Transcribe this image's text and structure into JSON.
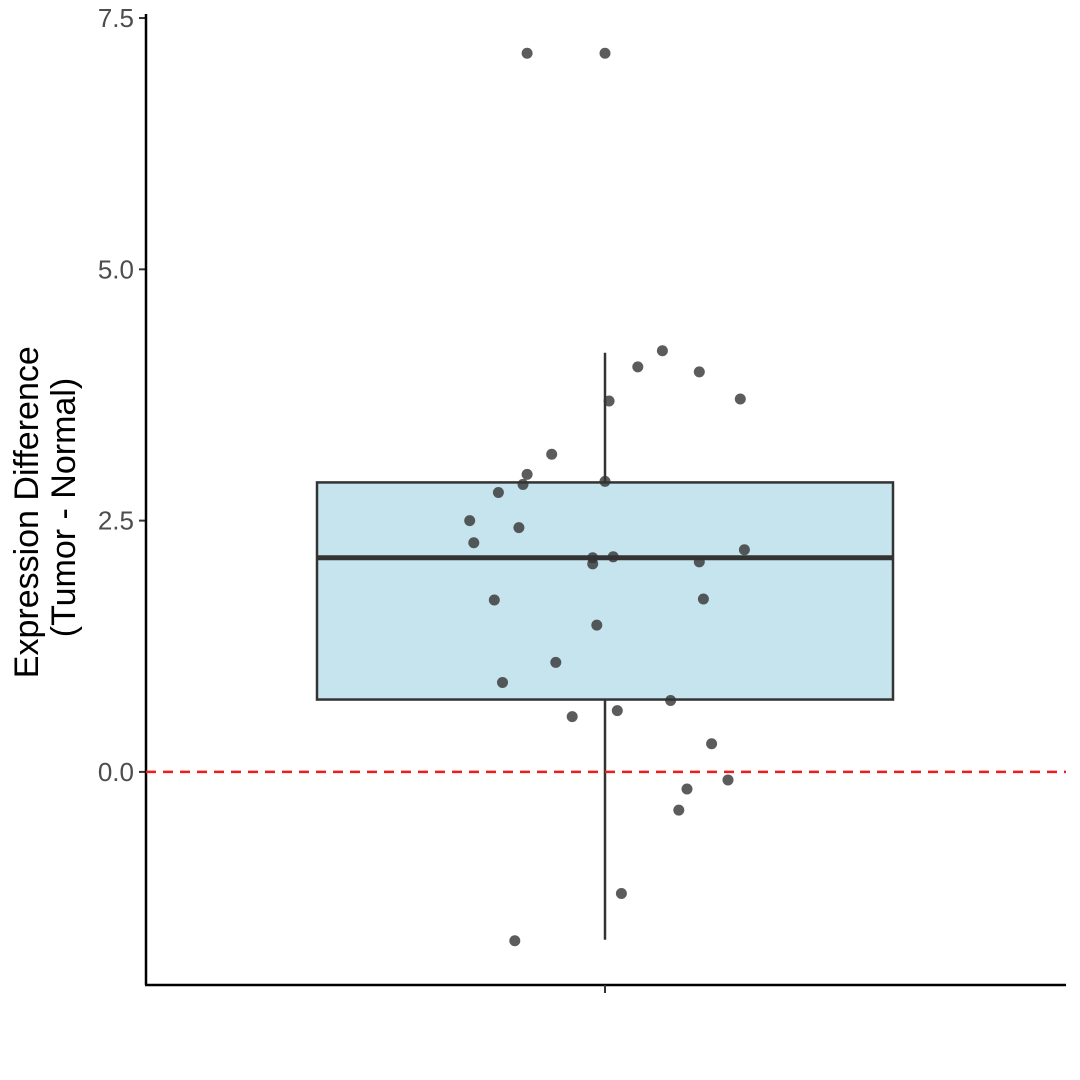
{
  "chart_data": {
    "type": "box",
    "title": "",
    "xlabel": "",
    "ylabel": [
      "Expression Difference",
      "(Tumor - Normal)"
    ],
    "ylim": [
      -2.12,
      7.58
    ],
    "y_ticks": [
      0.0,
      2.5,
      5.0,
      7.5
    ],
    "y_tick_labels": [
      "0.0",
      "2.5",
      "5.0",
      "7.5"
    ],
    "grid": false,
    "categories": [
      ""
    ],
    "box": {
      "q1": 0.72,
      "median": 2.13,
      "q3": 2.88,
      "whisker_low": -1.67,
      "whisker_high": 4.17,
      "fill": "#c6e4ed",
      "stroke": "#333333"
    },
    "reference_line": {
      "y": 0.0,
      "color": "#ee1c1c",
      "style": "dashed"
    },
    "points_color": "#333333",
    "points": [
      {
        "jitter": -0.19,
        "y": 7.15
      },
      {
        "jitter": 0.0,
        "y": 7.15
      },
      {
        "jitter": 0.14,
        "y": 4.19
      },
      {
        "jitter": 0.08,
        "y": 4.03
      },
      {
        "jitter": 0.23,
        "y": 3.98
      },
      {
        "jitter": 0.33,
        "y": 3.71
      },
      {
        "jitter": 0.01,
        "y": 3.69
      },
      {
        "jitter": -0.13,
        "y": 3.16
      },
      {
        "jitter": -0.19,
        "y": 2.96
      },
      {
        "jitter": -0.2,
        "y": 2.86
      },
      {
        "jitter": 0.0,
        "y": 2.89
      },
      {
        "jitter": -0.26,
        "y": 2.78
      },
      {
        "jitter": -0.33,
        "y": 2.5
      },
      {
        "jitter": -0.21,
        "y": 2.43
      },
      {
        "jitter": -0.32,
        "y": 2.28
      },
      {
        "jitter": 0.34,
        "y": 2.21
      },
      {
        "jitter": 0.02,
        "y": 2.14
      },
      {
        "jitter": -0.03,
        "y": 2.13
      },
      {
        "jitter": -0.03,
        "y": 2.07
      },
      {
        "jitter": 0.23,
        "y": 2.09
      },
      {
        "jitter": -0.27,
        "y": 1.71
      },
      {
        "jitter": 0.24,
        "y": 1.72
      },
      {
        "jitter": -0.02,
        "y": 1.46
      },
      {
        "jitter": -0.12,
        "y": 1.09
      },
      {
        "jitter": -0.25,
        "y": 0.89
      },
      {
        "jitter": 0.16,
        "y": 0.71
      },
      {
        "jitter": 0.03,
        "y": 0.61
      },
      {
        "jitter": -0.08,
        "y": 0.55
      },
      {
        "jitter": 0.26,
        "y": 0.28
      },
      {
        "jitter": 0.3,
        "y": -0.08
      },
      {
        "jitter": 0.2,
        "y": -0.17
      },
      {
        "jitter": 0.18,
        "y": -0.38
      },
      {
        "jitter": 0.04,
        "y": -1.21
      },
      {
        "jitter": -0.22,
        "y": -1.68
      }
    ]
  }
}
